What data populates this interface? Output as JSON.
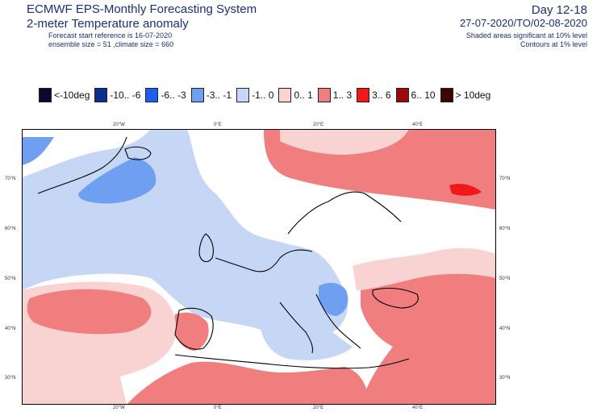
{
  "header": {
    "title": "ECMWF EPS-Monthly Forecasting System",
    "subtitle": "2-meter Temperature anomaly",
    "start_reference": "Forecast start reference is 16-07-2020",
    "ensemble_size": "ensemble size = 51  ,climate size = 660",
    "day_range": "Day 12-18",
    "date_range": "27-07-2020/TO/02-08-2020",
    "shaded_note": "Shaded areas significant at 10% level",
    "contour_note": "Contours at 1% level"
  },
  "legend": [
    {
      "label": "<-10deg",
      "color": "#0a0a2e"
    },
    {
      "label": "-10.. -6",
      "color": "#0b2f8a"
    },
    {
      "label": "-6.. -3",
      "color": "#1c5ff0"
    },
    {
      "label": "-3.. -1",
      "color": "#6f9ff0"
    },
    {
      "label": "-1..  0",
      "color": "#c6d7f5"
    },
    {
      "label": "0..  1",
      "color": "#f9d2d2"
    },
    {
      "label": "1..  3",
      "color": "#f07e7e"
    },
    {
      "label": "3..  6",
      "color": "#f01818"
    },
    {
      "label": "6.. 10",
      "color": "#9b0a0a"
    },
    {
      "label": "> 10deg",
      "color": "#3a0606"
    }
  ],
  "axes": {
    "top_lon": [
      "20°W",
      "0°E",
      "20°E",
      "40°E"
    ],
    "bottom_lon": [
      "20°W",
      "0°E",
      "20°E",
      "40°E"
    ],
    "left_lat": [
      "70°N",
      "60°N",
      "50°N",
      "40°N",
      "30°N"
    ],
    "right_lat": [
      "70°N",
      "60°N",
      "50°N",
      "40°N",
      "30°N"
    ]
  }
}
